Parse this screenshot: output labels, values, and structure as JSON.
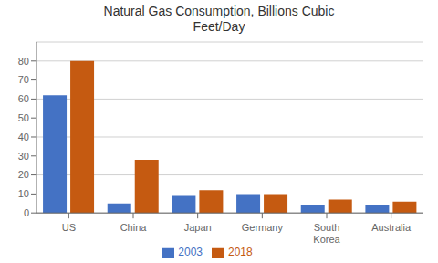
{
  "chart_data": {
    "type": "bar",
    "title": "Natural Gas Consumption, Billions Cubic\nFeet/Day",
    "categories": [
      "US",
      "China",
      "Japan",
      "Germany",
      "South\nKorea",
      "Australia"
    ],
    "series": [
      {
        "name": "2003",
        "color": "#4472C4",
        "values": [
          62,
          5,
          9,
          10,
          4,
          4
        ]
      },
      {
        "name": "2018",
        "color": "#C55A11",
        "values": [
          80,
          28,
          12,
          10,
          7,
          6
        ]
      }
    ],
    "ylim": [
      0,
      90
    ],
    "yticks": [
      0,
      10,
      20,
      30,
      40,
      50,
      60,
      70,
      80
    ],
    "grid": true,
    "legend": "bottom"
  }
}
